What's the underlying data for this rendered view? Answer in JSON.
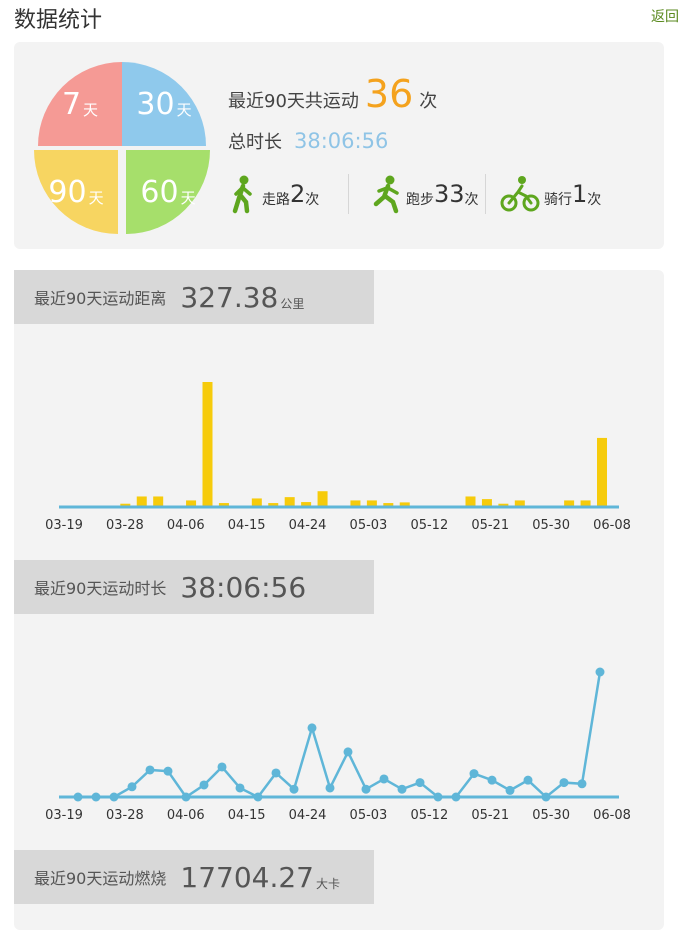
{
  "header": {
    "title": "数据统计",
    "back_label": "返回"
  },
  "summary": {
    "pie": [
      {
        "num": "7",
        "unit": "天"
      },
      {
        "num": "30",
        "unit": "天"
      },
      {
        "num": "90",
        "unit": "天"
      },
      {
        "num": "60",
        "unit": "天"
      }
    ],
    "total_prefix": "最近90天共运动",
    "total_count": "36",
    "total_unit": "次",
    "duration_label": "总时长",
    "duration_value": "38:06:56",
    "stats": [
      {
        "icon": "walk-icon",
        "label": "走路",
        "count": "2",
        "unit": "次"
      },
      {
        "icon": "run-icon",
        "label": "跑步",
        "count": "33",
        "unit": "次"
      },
      {
        "icon": "bike-icon",
        "label": "骑行",
        "count": "1",
        "unit": "次"
      }
    ],
    "colors": {
      "walk": "#5ea61e",
      "pie_7": "#f59a95",
      "pie_30": "#8fc9ec",
      "pie_90": "#f7d561",
      "pie_60": "#a6df6b"
    }
  },
  "distance_section": {
    "label": "最近90天运动距离",
    "value": "327.38",
    "unit": "公里"
  },
  "time_section": {
    "label": "最近90天运动时长",
    "value": "38:06:56"
  },
  "calorie_section": {
    "label": "最近90天运动燃烧",
    "value": "17704.27",
    "unit": "大卡"
  },
  "chart_data": [
    {
      "type": "bar",
      "color": "#f6cb0b",
      "tick_labels": [
        "03-19",
        "03-28",
        "04-06",
        "04-15",
        "04-24",
        "05-03",
        "05-12",
        "05-21",
        "05-30",
        "06-08"
      ],
      "values": [
        0,
        0,
        0,
        1,
        3.2,
        3.2,
        0,
        2,
        38,
        1.2,
        0,
        2.6,
        1.2,
        3,
        1.5,
        4.8,
        0,
        2,
        2,
        1.2,
        1.4,
        0,
        0,
        0,
        3.2,
        2.4,
        1,
        2,
        0,
        0,
        2,
        2,
        21
      ]
    },
    {
      "type": "line",
      "color": "#5fb6d8",
      "tick_labels": [
        "03-19",
        "03-28",
        "04-06",
        "04-15",
        "04-24",
        "05-03",
        "05-12",
        "05-21",
        "05-30",
        "06-08"
      ],
      "values": [
        0,
        0,
        0,
        1.7,
        4.5,
        4.3,
        0,
        2,
        5,
        1.5,
        0,
        4,
        1.3,
        11.5,
        1.5,
        7.5,
        1.3,
        3,
        1.3,
        2.4,
        0,
        0,
        3.9,
        2.8,
        1.1,
        2.8,
        0,
        2.4,
        2.2,
        20.8
      ]
    }
  ]
}
